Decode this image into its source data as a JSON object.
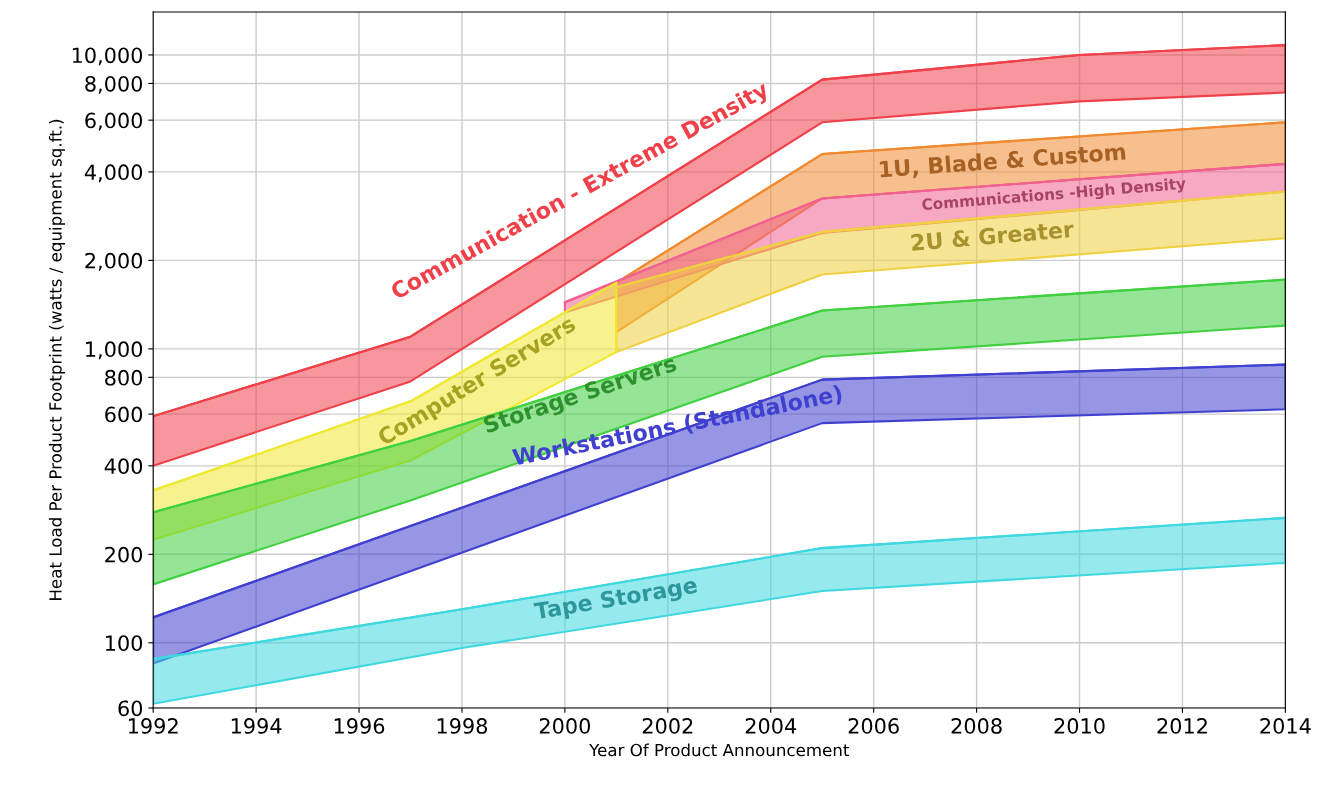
{
  "chart_data": {
    "type": "line",
    "xlabel": "Year Of Product Announcement",
    "ylabel": "Heat Load Per Product Footprint (watts / equipment sq.ft.)",
    "xlim": [
      1992,
      2014
    ],
    "xticks": [
      1992,
      1994,
      1996,
      1998,
      2000,
      2002,
      2004,
      2006,
      2008,
      2010,
      2012,
      2014
    ],
    "log": "y",
    "ylim": [
      60,
      14000
    ],
    "yticks": [
      60,
      100,
      200,
      400,
      600,
      800,
      {
        "value": 1000,
        "label": "1,000"
      },
      {
        "value": 2000,
        "label": "2,000"
      },
      {
        "value": 4000,
        "label": "4,000"
      },
      {
        "value": 6000,
        "label": "6,000"
      },
      {
        "value": 8000,
        "label": "8,000"
      },
      {
        "value": 10000,
        "label": "10,000"
      }
    ],
    "grid": true,
    "legend": false,
    "series": [
      {
        "name": "Communication - Extreme Density",
        "color": "#f0404a",
        "x": [
          1992,
          1997,
          2005,
          2010,
          2014
        ],
        "values": [
          590,
          1100,
          8240,
          10000,
          10800
        ],
        "lower": [
          400,
          775,
          5900,
          6950,
          7450
        ],
        "upper": [
          590,
          1100,
          8240,
          10000,
          10800
        ]
      },
      {
        "name": "1U, Blade & Custom",
        "color": "#f08a30",
        "x": [
          2001,
          2005,
          2014
        ],
        "values": [
          1680,
          4600,
          5900
        ],
        "lower": [
          1140,
          3250,
          4260
        ],
        "upper": [
          1680,
          4600,
          5900
        ]
      },
      {
        "name": "Communications -High Density",
        "color": "#f06090",
        "x": [
          2000,
          2005,
          2014
        ],
        "values": [
          1440,
          3250,
          4260
        ],
        "lower": [
          1330,
          2480,
          3430
        ],
        "upper": [
          1440,
          3250,
          4260
        ]
      },
      {
        "name": "2U & Greater",
        "color": "#f0d040",
        "x": [
          2001,
          2005,
          2014
        ],
        "values": [
          1620,
          2500,
          3430
        ],
        "lower": [
          975,
          1790,
          2380
        ],
        "upper": [
          1620,
          2500,
          3430
        ]
      },
      {
        "name": "Computer Servers",
        "color": "#f0e830",
        "x": [
          1992,
          1997,
          2001
        ],
        "values": [
          330,
          663,
          1680
        ],
        "lower": [
          224,
          417,
          975
        ],
        "upper": [
          330,
          663,
          1680
        ]
      },
      {
        "name": "Storage Servers",
        "color": "#40d040",
        "x": [
          1992,
          1997,
          2005,
          2014
        ],
        "values": [
          278,
          486,
          1350,
          1720
        ],
        "lower": [
          158,
          305,
          940,
          1200
        ],
        "upper": [
          278,
          486,
          1350,
          1720
        ]
      },
      {
        "name": "Workstations (Standalone)",
        "color": "#4040d0",
        "x": [
          1992,
          2005,
          2014
        ],
        "values": [
          122,
          786,
          884
        ],
        "lower": [
          85,
          559,
          623
        ],
        "upper": [
          122,
          786,
          884
        ]
      },
      {
        "name": "Tape Storage",
        "color": "#40d8e0",
        "x": [
          1992,
          1998,
          2005,
          2014
        ],
        "values": [
          88,
          130,
          210,
          266
        ],
        "lower": [
          62,
          96,
          150,
          187
        ],
        "upper": [
          88,
          130,
          210,
          266
        ]
      }
    ]
  }
}
